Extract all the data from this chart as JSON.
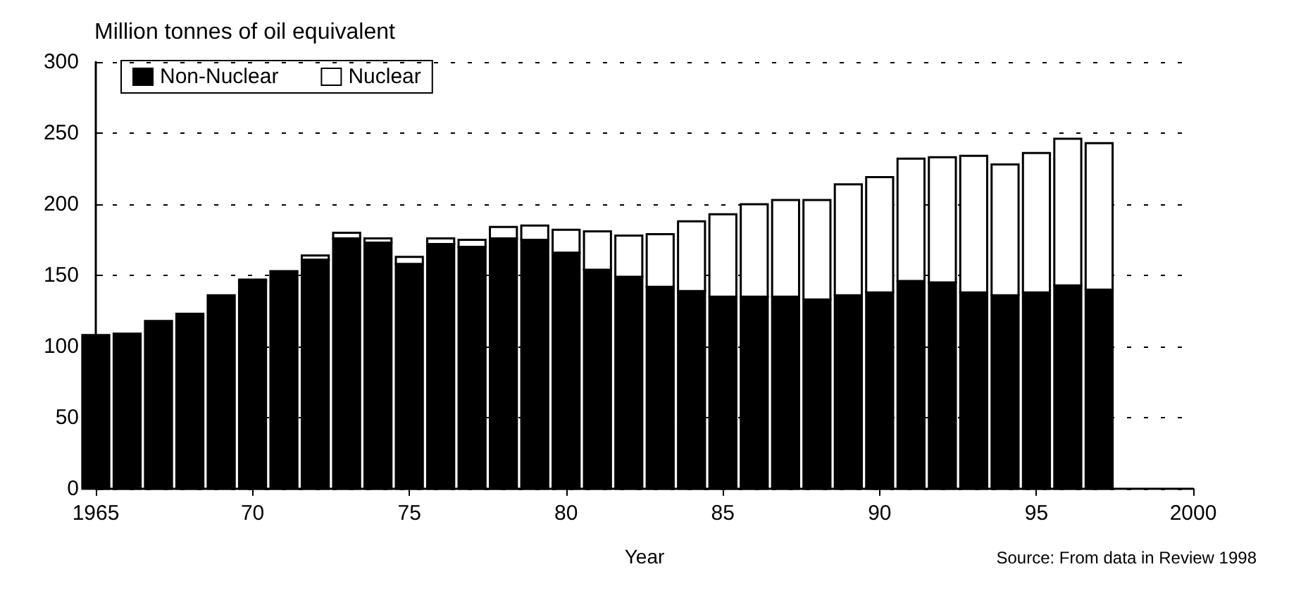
{
  "chart_data": {
    "type": "bar",
    "stacked": true,
    "x": [
      1965,
      1966,
      1967,
      1968,
      1969,
      1970,
      1971,
      1972,
      1973,
      1974,
      1975,
      1976,
      1977,
      1978,
      1979,
      1980,
      1981,
      1982,
      1983,
      1984,
      1985,
      1986,
      1987,
      1988,
      1989,
      1990,
      1991,
      1992,
      1993,
      1994,
      1995,
      1996,
      1997
    ],
    "series": [
      {
        "name": "Non-Nuclear",
        "color": "#000000",
        "values": [
          108,
          109,
          118,
          123,
          136,
          146,
          153,
          161,
          176,
          173,
          158,
          172,
          170,
          176,
          175,
          166,
          154,
          149,
          142,
          139,
          135,
          135,
          135,
          133,
          136,
          138,
          146,
          145,
          138,
          136,
          138,
          143,
          140
        ]
      },
      {
        "name": "Nuclear",
        "color": "#ffffff",
        "values": [
          null,
          null,
          null,
          null,
          null,
          1,
          null,
          3,
          4,
          3,
          5,
          4,
          5,
          8,
          10,
          16,
          27,
          29,
          37,
          49,
          58,
          65,
          68,
          70,
          78,
          81,
          86,
          88,
          96,
          92,
          98,
          103,
          103
        ]
      }
    ],
    "ylabel": "Million tonnes of oil equivalent",
    "xlabel": "Year",
    "annotations": [
      "Source: From data in Review 1998"
    ],
    "xlim": [
      1965,
      2000
    ],
    "xticks": [
      1965,
      {
        "value": 1970,
        "label": "70"
      },
      {
        "value": 1975,
        "label": "75"
      },
      {
        "value": 1980,
        "label": "80"
      },
      {
        "value": 1985,
        "label": "85"
      },
      {
        "value": 1990,
        "label": "90"
      },
      {
        "value": 1995,
        "label": "95"
      },
      2000
    ],
    "ylim": [
      0,
      300
    ],
    "yticks": [
      0,
      50,
      100,
      150,
      200,
      250,
      300
    ],
    "grid": "y",
    "legend": "top left"
  }
}
